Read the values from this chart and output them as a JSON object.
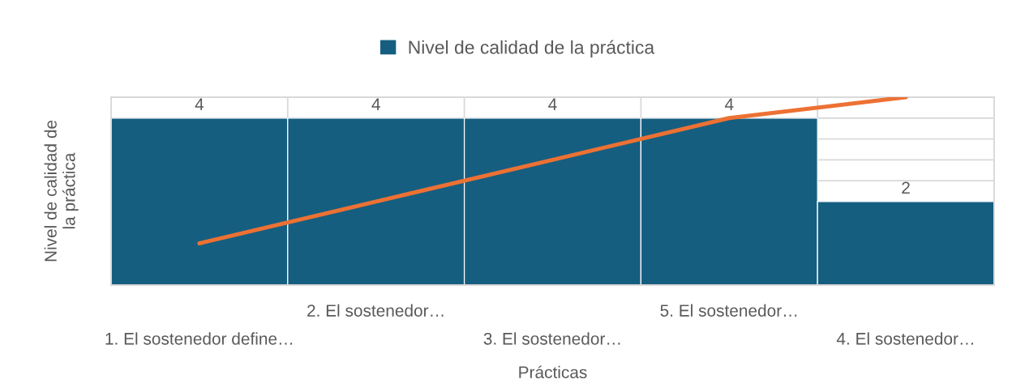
{
  "chart_data": {
    "type": "bar",
    "xlabel": "Prácticas",
    "ylabel": "Nivel de calidad de\nla práctica",
    "categories": [
      "1. El sostenedor define…",
      "2. El sostenedor…",
      "3. El sostenedor…",
      "5. El sostenedor…",
      "4. El sostenedor…"
    ],
    "series": [
      {
        "name": "Nivel de calidad de la práctica",
        "color": "#165e80",
        "values": [
          4,
          4,
          4,
          4,
          2
        ],
        "value_labels": [
          "4",
          "4",
          "4",
          "4",
          "2"
        ]
      },
      {
        "type": "line",
        "color": "#ed7133",
        "values": [
          1,
          2,
          3,
          4,
          4.5
        ]
      }
    ],
    "ylim": [
      0,
      4.5
    ],
    "yticks": [
      {
        "value": 0,
        "label": null
      },
      {
        "value": 2,
        "label": null
      },
      {
        "value": 2.5,
        "label": null
      },
      {
        "value": 3,
        "label": null
      },
      {
        "value": 3.5,
        "label": null
      },
      {
        "value": 4,
        "label": null
      },
      {
        "value": 4.5,
        "label": null
      }
    ],
    "tick_labels": "x",
    "grid": true,
    "legend": "top",
    "marker": "none",
    "line_style": "solid"
  }
}
